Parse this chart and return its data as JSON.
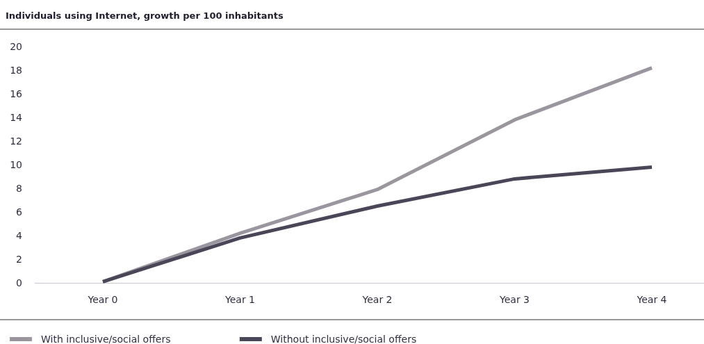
{
  "chart_data": {
    "type": "line",
    "title": "Individuals using Internet, growth per 100 inhabitants",
    "categories": [
      "Year 0",
      "Year 1",
      "Year 2",
      "Year 3",
      "Year 4"
    ],
    "series": [
      {
        "name": "With inclusive/social offers",
        "color": "#9a959f",
        "values": [
          0.1,
          4.2,
          7.9,
          13.8,
          18.2
        ]
      },
      {
        "name": "Without inclusive/social offers",
        "color": "#4a4658",
        "values": [
          0.1,
          3.8,
          6.5,
          8.8,
          9.8
        ]
      }
    ],
    "ylim": [
      0,
      20
    ],
    "yticks": [
      0,
      2,
      4,
      6,
      8,
      10,
      12,
      14,
      16,
      18,
      20
    ],
    "grid": false,
    "legend": "bottom",
    "marker": "none",
    "line_style": "solid"
  }
}
